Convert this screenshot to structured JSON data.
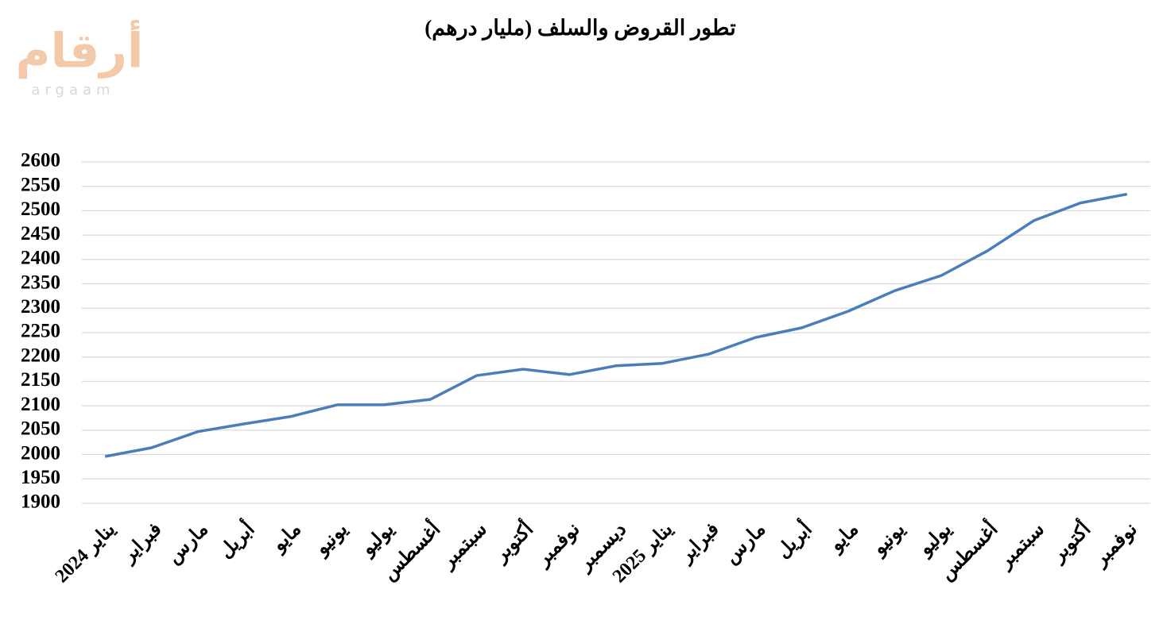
{
  "logo": {
    "arabic": "أرقام",
    "latin": "argaam"
  },
  "chart_data": {
    "type": "line",
    "title": "تطور القروض والسلف (مليار درهم)",
    "categories": [
      "يناير 2024",
      "فبراير",
      "مارس",
      "أبريل",
      "مايو",
      "يونيو",
      "يوليو",
      "أغسطس",
      "سبتمبر",
      "أكتوبر",
      "نوفمبر",
      "ديسمبر",
      "يناير 2025",
      "فبراير",
      "مارس",
      "أبريل",
      "مايو",
      "يونيو",
      "يوليو",
      "أغسطس",
      "سبتمبر",
      "أكتوبر",
      "نوفمبر"
    ],
    "values": [
      1996,
      2014,
      2047,
      2063,
      2078,
      2102,
      2102,
      2113,
      2162,
      2175,
      2164,
      2182,
      2187,
      2206,
      2240,
      2260,
      2294,
      2336,
      2367,
      2418,
      2480,
      2516,
      2534
    ],
    "color": "#4a7ebb",
    "ylim": [
      1900,
      2600
    ],
    "yticks": [
      1900,
      1950,
      2000,
      2050,
      2100,
      2150,
      2200,
      2250,
      2300,
      2350,
      2400,
      2450,
      2500,
      2550,
      2600
    ],
    "grid": true
  }
}
